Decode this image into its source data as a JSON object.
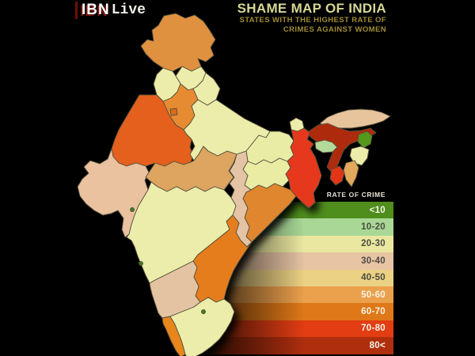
{
  "background": "#000000",
  "brand": {
    "ibn": "IBN",
    "live": "Live"
  },
  "header": {
    "title": "SHAME MAP OF INDIA",
    "subtitle_line1": "STATES WITH THE HIGHEST RATE OF",
    "subtitle_line2": "CRIMES AGAINST WOMEN",
    "title_color": "#d6d795",
    "subtitle_color": "#a08c35"
  },
  "legend": {
    "header": "RATE OF CRIME",
    "items": [
      {
        "label": "<10",
        "color": "#4f8d1d",
        "text_color": "#f7f4e8"
      },
      {
        "label": "10-20",
        "color": "#a9d896",
        "text_color": "#4c4c40"
      },
      {
        "label": "20-30",
        "color": "#eae8a0",
        "text_color": "#4c4c40"
      },
      {
        "label": "30-40",
        "color": "#e6c4a4",
        "text_color": "#4c4c40"
      },
      {
        "label": "40-50",
        "color": "#ebd184",
        "text_color": "#4c4c40"
      },
      {
        "label": "50-60",
        "color": "#eba04c",
        "text_color": "#f7f4e8"
      },
      {
        "label": "60-70",
        "color": "#df7818",
        "text_color": "#f7f4e8"
      },
      {
        "label": "70-80",
        "color": "#e23d13",
        "text_color": "#f7f4e8"
      },
      {
        "label": "80<",
        "color": "#ae2e0e",
        "text_color": "#f7f4e8"
      }
    ]
  },
  "map": {
    "border_color": "#54503c",
    "states": [
      {
        "id": "jammu-kashmir",
        "range": "50-60",
        "color": "#e09140"
      },
      {
        "id": "himachal-pradesh",
        "range": "20-30",
        "color": "#ecedaa"
      },
      {
        "id": "punjab",
        "range": "20-30",
        "color": "#ecedaa"
      },
      {
        "id": "uttarakhand",
        "range": "20-30",
        "color": "#ecedaa"
      },
      {
        "id": "haryana",
        "range": "50-60",
        "color": "#e78b30"
      },
      {
        "id": "delhi",
        "range": "60-70",
        "color": "#d96c1e"
      },
      {
        "id": "rajasthan",
        "range": "60-70",
        "color": "#e4611a"
      },
      {
        "id": "gujarat",
        "range": "30-40",
        "color": "#eac2a0"
      },
      {
        "id": "uttar-pradesh",
        "range": "20-30",
        "color": "#ecedaa"
      },
      {
        "id": "madhya-pradesh",
        "range": "40-50",
        "color": "#dda55e"
      },
      {
        "id": "bihar",
        "range": "20-30",
        "color": "#e9eca4"
      },
      {
        "id": "sikkim",
        "range": "20-30",
        "color": "#ecedaa"
      },
      {
        "id": "west-bengal",
        "range": "70-80",
        "color": "#e6391e"
      },
      {
        "id": "jharkhand",
        "range": "20-30",
        "color": "#eaeca4"
      },
      {
        "id": "chhattisgarh",
        "range": "30-40",
        "color": "#e4c4a4"
      },
      {
        "id": "odisha",
        "range": "50-60",
        "color": "#e0862e"
      },
      {
        "id": "maharashtra",
        "range": "20-30",
        "color": "#ecedaa"
      },
      {
        "id": "andhra-pradesh",
        "range": "60-70",
        "color": "#e67d1f"
      },
      {
        "id": "karnataka",
        "range": "30-40",
        "color": "#e4c3a2"
      },
      {
        "id": "kerala",
        "range": "50-60",
        "color": "#e8861c"
      },
      {
        "id": "tamil-nadu",
        "range": "20-30",
        "color": "#ecedaa"
      },
      {
        "id": "arunachal-pradesh",
        "range": "30-40",
        "color": "#e8c49c"
      },
      {
        "id": "assam",
        "range": "80<",
        "color": "#ae2a10"
      },
      {
        "id": "nagaland",
        "range": "<10",
        "color": "#55991c"
      },
      {
        "id": "manipur",
        "range": "20-30",
        "color": "#ecedaa"
      },
      {
        "id": "mizoram",
        "range": "40-50",
        "color": "#e2a95c"
      },
      {
        "id": "tripura",
        "range": "70-80",
        "color": "#e23418"
      },
      {
        "id": "meghalaya",
        "range": "10-20",
        "color": "#b3da9a"
      },
      {
        "id": "goa",
        "range": "<10",
        "color": "#3f7d1a"
      },
      {
        "id": "dadra-nagar-haveli",
        "range": "<10",
        "color": "#3f7d1a"
      },
      {
        "id": "puducherry",
        "range": "<10",
        "color": "#3f7d1a"
      }
    ]
  }
}
